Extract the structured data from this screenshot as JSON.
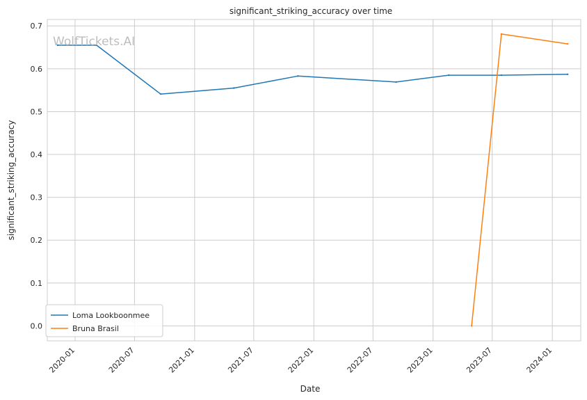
{
  "chart_data": {
    "type": "line",
    "title": "significant_striking_accuracy over time",
    "xlabel": "Date",
    "ylabel": "significant_striking_accuracy",
    "watermark": "WolfTickets.AI",
    "xlim": [
      "2019-10-08",
      "2024-03-28"
    ],
    "ylim": [
      -0.035,
      0.715
    ],
    "x_ticks": [
      "2020-01",
      "2020-07",
      "2021-01",
      "2021-07",
      "2022-01",
      "2022-07",
      "2023-01",
      "2023-07",
      "2024-01"
    ],
    "y_ticks": [
      "0.0",
      "0.1",
      "0.2",
      "0.3",
      "0.4",
      "0.5",
      "0.6",
      "0.7"
    ],
    "grid": true,
    "legend_position": "lower-left",
    "series": [
      {
        "name": "Loma Lookboonmee",
        "color": "#1f77b4",
        "points": [
          {
            "x": "2019-11-09",
            "y": 0.655
          },
          {
            "x": "2020-03-07",
            "y": 0.655
          },
          {
            "x": "2020-09-19",
            "y": 0.541
          },
          {
            "x": "2021-05-01",
            "y": 0.555
          },
          {
            "x": "2021-11-13",
            "y": 0.583
          },
          {
            "x": "2022-09-10",
            "y": 0.569
          },
          {
            "x": "2023-02-18",
            "y": 0.585
          },
          {
            "x": "2023-07-29",
            "y": 0.585
          },
          {
            "x": "2024-02-17",
            "y": 0.587
          }
        ]
      },
      {
        "name": "Bruna Brasil",
        "color": "#ff7f0e",
        "points": [
          {
            "x": "2023-04-29",
            "y": 0.0
          },
          {
            "x": "2023-07-29",
            "y": 0.681
          },
          {
            "x": "2024-02-17",
            "y": 0.658
          }
        ]
      }
    ]
  }
}
